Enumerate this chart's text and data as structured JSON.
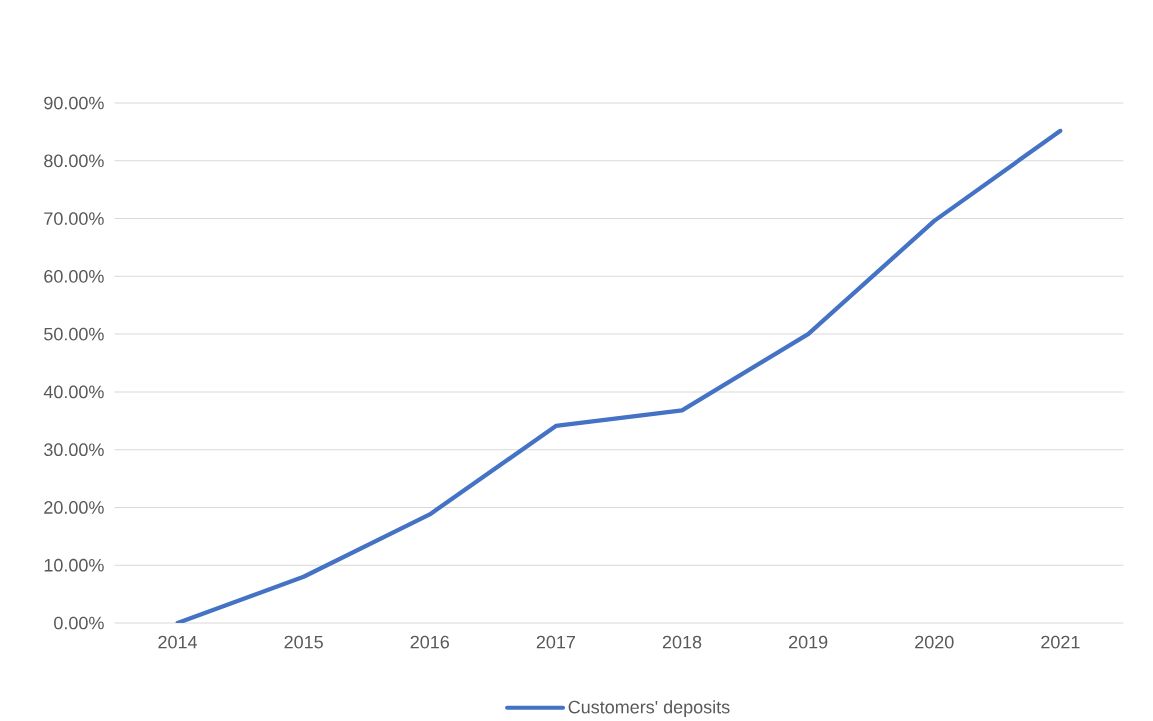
{
  "chart_data": {
    "type": "line",
    "categories": [
      "2014",
      "2015",
      "2016",
      "2017",
      "2018",
      "2019",
      "2020",
      "2021"
    ],
    "series": [
      {
        "name": "Customers' deposits",
        "color": "#4472c4",
        "values": [
          0,
          8.0,
          18.8,
          34.1,
          36.8,
          50.0,
          69.6,
          85.2
        ]
      }
    ],
    "ylim": [
      0,
      90
    ],
    "yticks": [
      {
        "value": 0,
        "label": "0.00%"
      },
      {
        "value": 10,
        "label": "10.00%"
      },
      {
        "value": 20,
        "label": "20.00%"
      },
      {
        "value": 30,
        "label": "30.00%"
      },
      {
        "value": 40,
        "label": "40.00%"
      },
      {
        "value": 50,
        "label": "50.00%"
      },
      {
        "value": 60,
        "label": "60.00%"
      },
      {
        "value": 70,
        "label": "70.00%"
      },
      {
        "value": 80,
        "label": "80.00%"
      },
      {
        "value": 90,
        "label": "90.00%"
      }
    ],
    "grid": "y",
    "legend": "bottom",
    "marker": "none",
    "line_style": "solid"
  }
}
